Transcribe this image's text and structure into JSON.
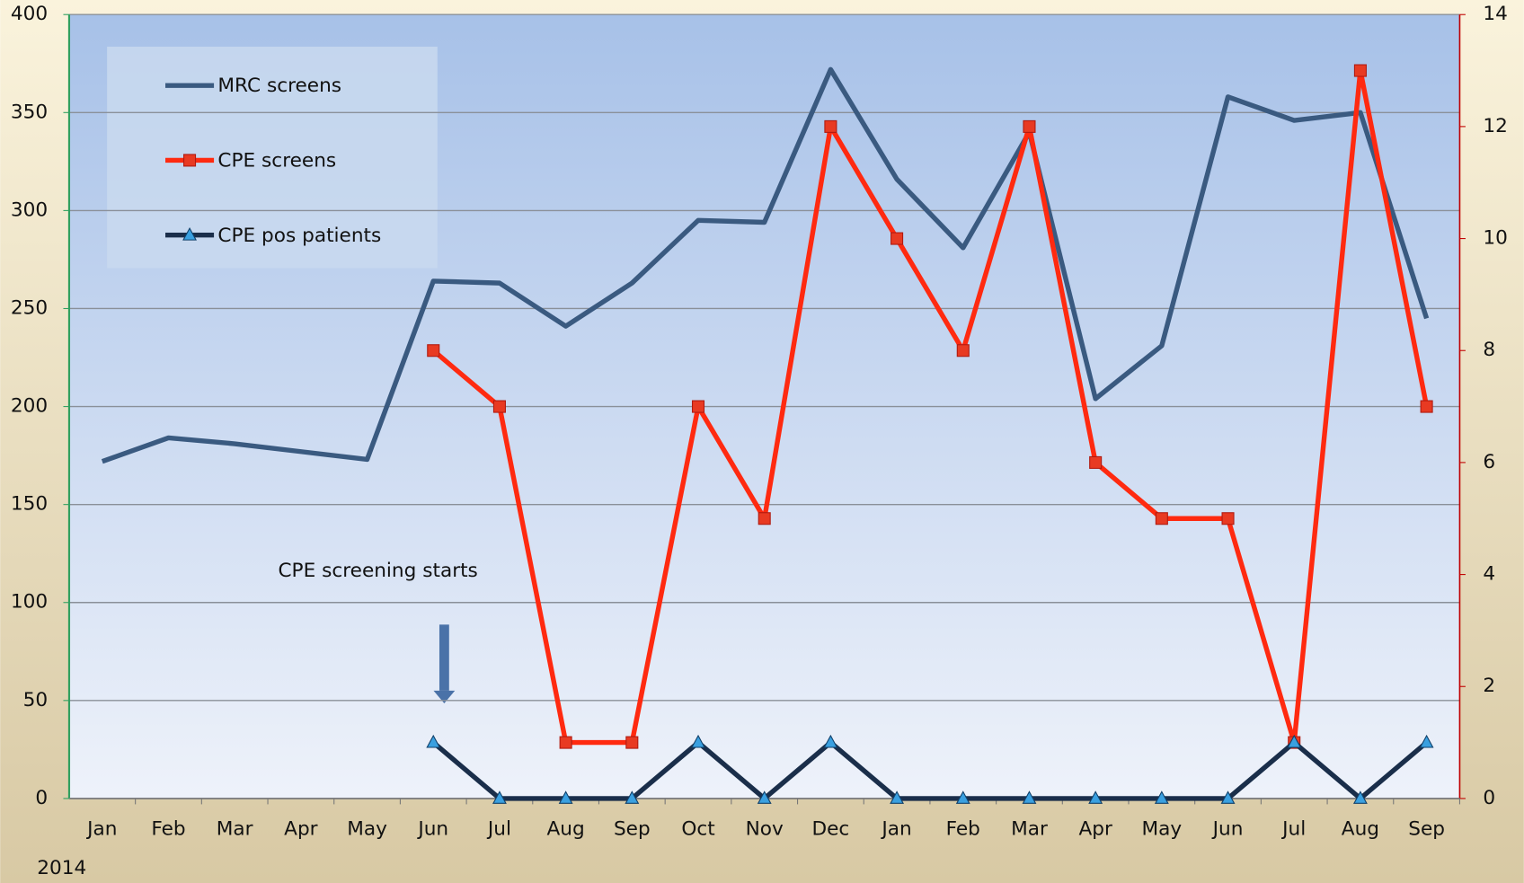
{
  "chart_data": {
    "type": "line",
    "categories": [
      "Jan",
      "Feb",
      "Mar",
      "Apr",
      "May",
      "Jun",
      "Jul",
      "Aug",
      "Sep",
      "Oct",
      "Nov",
      "Dec",
      "Jan",
      "Feb",
      "Mar",
      "Apr",
      "May",
      "Jun",
      "Jul",
      "Aug",
      "Sep"
    ],
    "series": [
      {
        "name": "MRC screens",
        "color": "#3a5a80",
        "values": [
          172,
          184,
          181,
          177,
          173,
          264,
          263,
          241,
          263,
          295,
          294,
          372,
          316,
          281,
          340,
          204,
          231,
          358,
          346,
          350,
          245
        ]
      },
      {
        "name": "CPE screens",
        "color": "#ff2a10",
        "marker": "square",
        "axis": "y2",
        "values": [
          null,
          null,
          null,
          null,
          null,
          8,
          7,
          1,
          1,
          7,
          5,
          12,
          10,
          8,
          12,
          6,
          5,
          5,
          1,
          13,
          7
        ]
      },
      {
        "name": "CPE pos patients",
        "color": "#1a2e4a",
        "marker": "triangle",
        "axis": "y2",
        "values": [
          null,
          null,
          null,
          null,
          null,
          1,
          0,
          0,
          0,
          1,
          0,
          1,
          0,
          0,
          0,
          0,
          0,
          0,
          1,
          0,
          1
        ]
      }
    ],
    "ylim": [
      0,
      400
    ],
    "yticks": [
      0,
      50,
      100,
      150,
      200,
      250,
      300,
      350,
      400
    ],
    "y2lim": [
      0,
      14
    ],
    "y2ticks": [
      0,
      2,
      4,
      6,
      8,
      10,
      12,
      14
    ],
    "grid": true,
    "annotations": [
      "CPE screening starts",
      "2014"
    ]
  }
}
